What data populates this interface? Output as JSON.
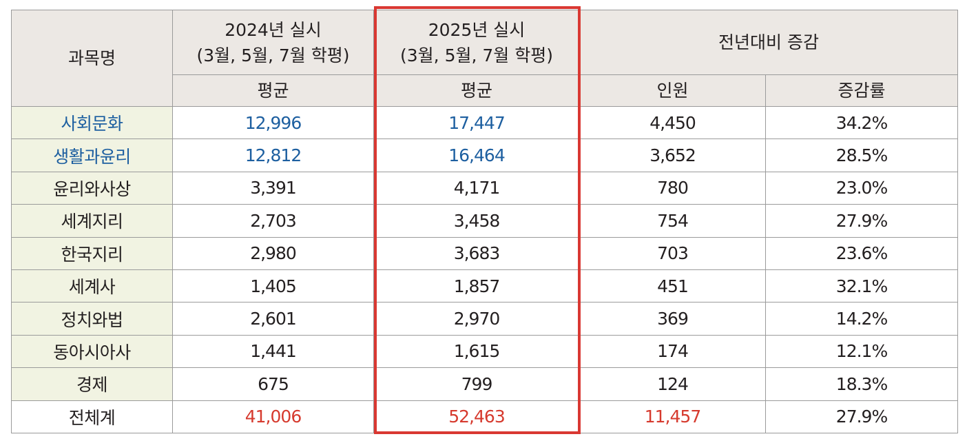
{
  "header": {
    "subject": "과목명",
    "y2024_line1": "2024년 실시",
    "y2024_line2": "(3월, 5월, 7월 학평)",
    "y2025_line1": "2025년 실시",
    "y2025_line2": "(3월, 5월, 7월 학평)",
    "change": "전년대비 증감",
    "avg_2024": "평균",
    "avg_2025": "평균",
    "people": "인원",
    "rate": "증감률"
  },
  "rows": [
    {
      "name": "사회문화",
      "y2024": "12,996",
      "y2025": "17,447",
      "people": "4,450",
      "rate": "34.2%"
    },
    {
      "name": "생활과윤리",
      "y2024": "12,812",
      "y2025": "16,464",
      "people": "3,652",
      "rate": "28.5%"
    },
    {
      "name": "윤리와사상",
      "y2024": "3,391",
      "y2025": "4,171",
      "people": "780",
      "rate": "23.0%"
    },
    {
      "name": "세계지리",
      "y2024": "2,703",
      "y2025": "3,458",
      "people": "754",
      "rate": "27.9%"
    },
    {
      "name": "한국지리",
      "y2024": "2,980",
      "y2025": "3,683",
      "people": "703",
      "rate": "23.6%"
    },
    {
      "name": "세계사",
      "y2024": "1,405",
      "y2025": "1,857",
      "people": "451",
      "rate": "32.1%"
    },
    {
      "name": "정치와법",
      "y2024": "2,601",
      "y2025": "2,970",
      "people": "369",
      "rate": "14.2%"
    },
    {
      "name": "동아시아사",
      "y2024": "1,441",
      "y2025": "1,615",
      "people": "174",
      "rate": "12.1%"
    },
    {
      "name": "경제",
      "y2024": "675",
      "y2025": "799",
      "people": "124",
      "rate": "18.3%"
    },
    {
      "name": "전체계",
      "y2024": "41,006",
      "y2025": "52,463",
      "people": "11,457",
      "rate": "27.9%"
    }
  ],
  "colors": {
    "header_bg": "#ece8e4",
    "subject_bg": "#f1f3e2",
    "blue_text": "#1d5fa0",
    "red_text": "#d63a2e",
    "highlight_border": "#d93832"
  }
}
